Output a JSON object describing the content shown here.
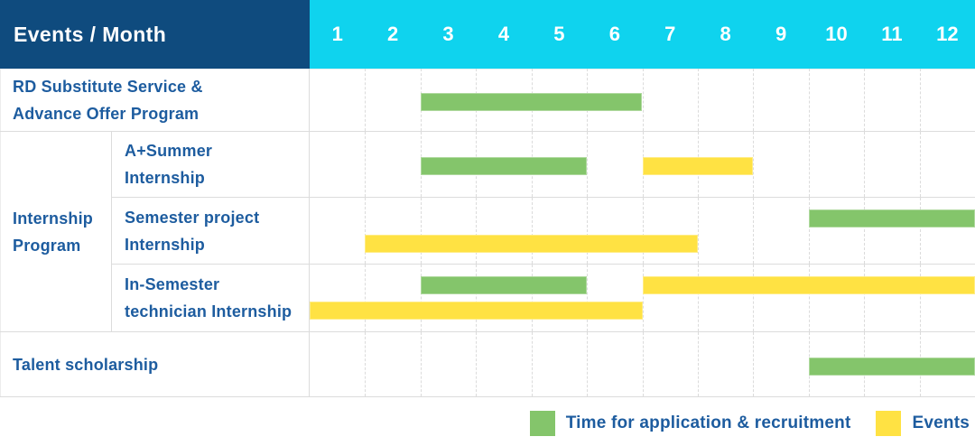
{
  "colors": {
    "navy_header": "#0F4B7E",
    "cyan_header": "#0FD3EE",
    "recruitment": "#84C56B",
    "events": "#FFE243",
    "label_text": "#1D5C9F",
    "header_text": "#FFFFFF",
    "grid_solid": "#DCDCDC",
    "grid_dashed": "#DBDBDB"
  },
  "chart_data": {
    "type": "bar",
    "subtype": "gantt-timeline",
    "title": "Events / Month",
    "x_axis_label": "Month",
    "x_categories": [
      "1",
      "2",
      "3",
      "4",
      "5",
      "6",
      "7",
      "8",
      "9",
      "10",
      "11",
      "12"
    ],
    "x_range": [
      1,
      12
    ],
    "grid": "dashed vertical month boundaries, solid row separators",
    "legend_position": "bottom-right",
    "group_labels": {
      "Internship Program": [
        "Internship",
        "Program"
      ]
    },
    "rows": [
      {
        "id": "rd-substitute",
        "label": "RD Substitute Service & Advance Offer Program",
        "lines": [
          "RD Substitute Service &",
          "Advance Offer Program"
        ],
        "group": null,
        "bars": [
          {
            "series": "Time for application & recruitment",
            "series_key": "recruitment",
            "start_month": 3,
            "end_month": 6,
            "lane": "center"
          }
        ]
      },
      {
        "id": "a-plus-summer",
        "label": "A+Summer Internship",
        "lines": [
          "A+Summer",
          "Internship"
        ],
        "group": "Internship Program",
        "bars": [
          {
            "series": "Time for application & recruitment",
            "series_key": "recruitment",
            "start_month": 3,
            "end_month": 5,
            "lane": "center"
          },
          {
            "series": "Events",
            "series_key": "events",
            "start_month": 7,
            "end_month": 8,
            "lane": "center"
          }
        ]
      },
      {
        "id": "semester-project",
        "label": "Semester project Internship",
        "lines": [
          "Semester project",
          "Internship"
        ],
        "group": "Internship Program",
        "bars": [
          {
            "series": "Time for application & recruitment",
            "series_key": "recruitment",
            "start_month": 10,
            "end_month": 12,
            "lane": "top"
          },
          {
            "series": "Events",
            "series_key": "events",
            "start_month": 2,
            "end_month": 7,
            "lane": "bottom"
          }
        ]
      },
      {
        "id": "in-semester-technician",
        "label": "In-Semester technician Internship",
        "lines": [
          "In-Semester",
          "technician Internship"
        ],
        "group": "Internship Program",
        "bars": [
          {
            "series": "Time for application & recruitment",
            "series_key": "recruitment",
            "start_month": 3,
            "end_month": 5,
            "lane": "top"
          },
          {
            "series": "Events",
            "series_key": "events",
            "start_month": 7,
            "end_month": 12,
            "lane": "top"
          },
          {
            "series": "Events",
            "series_key": "events",
            "start_month": 1,
            "end_month": 6,
            "lane": "bottom"
          }
        ]
      },
      {
        "id": "talent-scholarship",
        "label": "Talent scholarship",
        "lines": [
          "Talent scholarship"
        ],
        "group": null,
        "bars": [
          {
            "series": "Time for application & recruitment",
            "series_key": "recruitment",
            "start_month": 10,
            "end_month": 12,
            "lane": "center"
          }
        ]
      }
    ]
  },
  "legend": [
    {
      "key": "recruitment",
      "label": "Time for application & recruitment"
    },
    {
      "key": "events",
      "label": "Events"
    }
  ]
}
